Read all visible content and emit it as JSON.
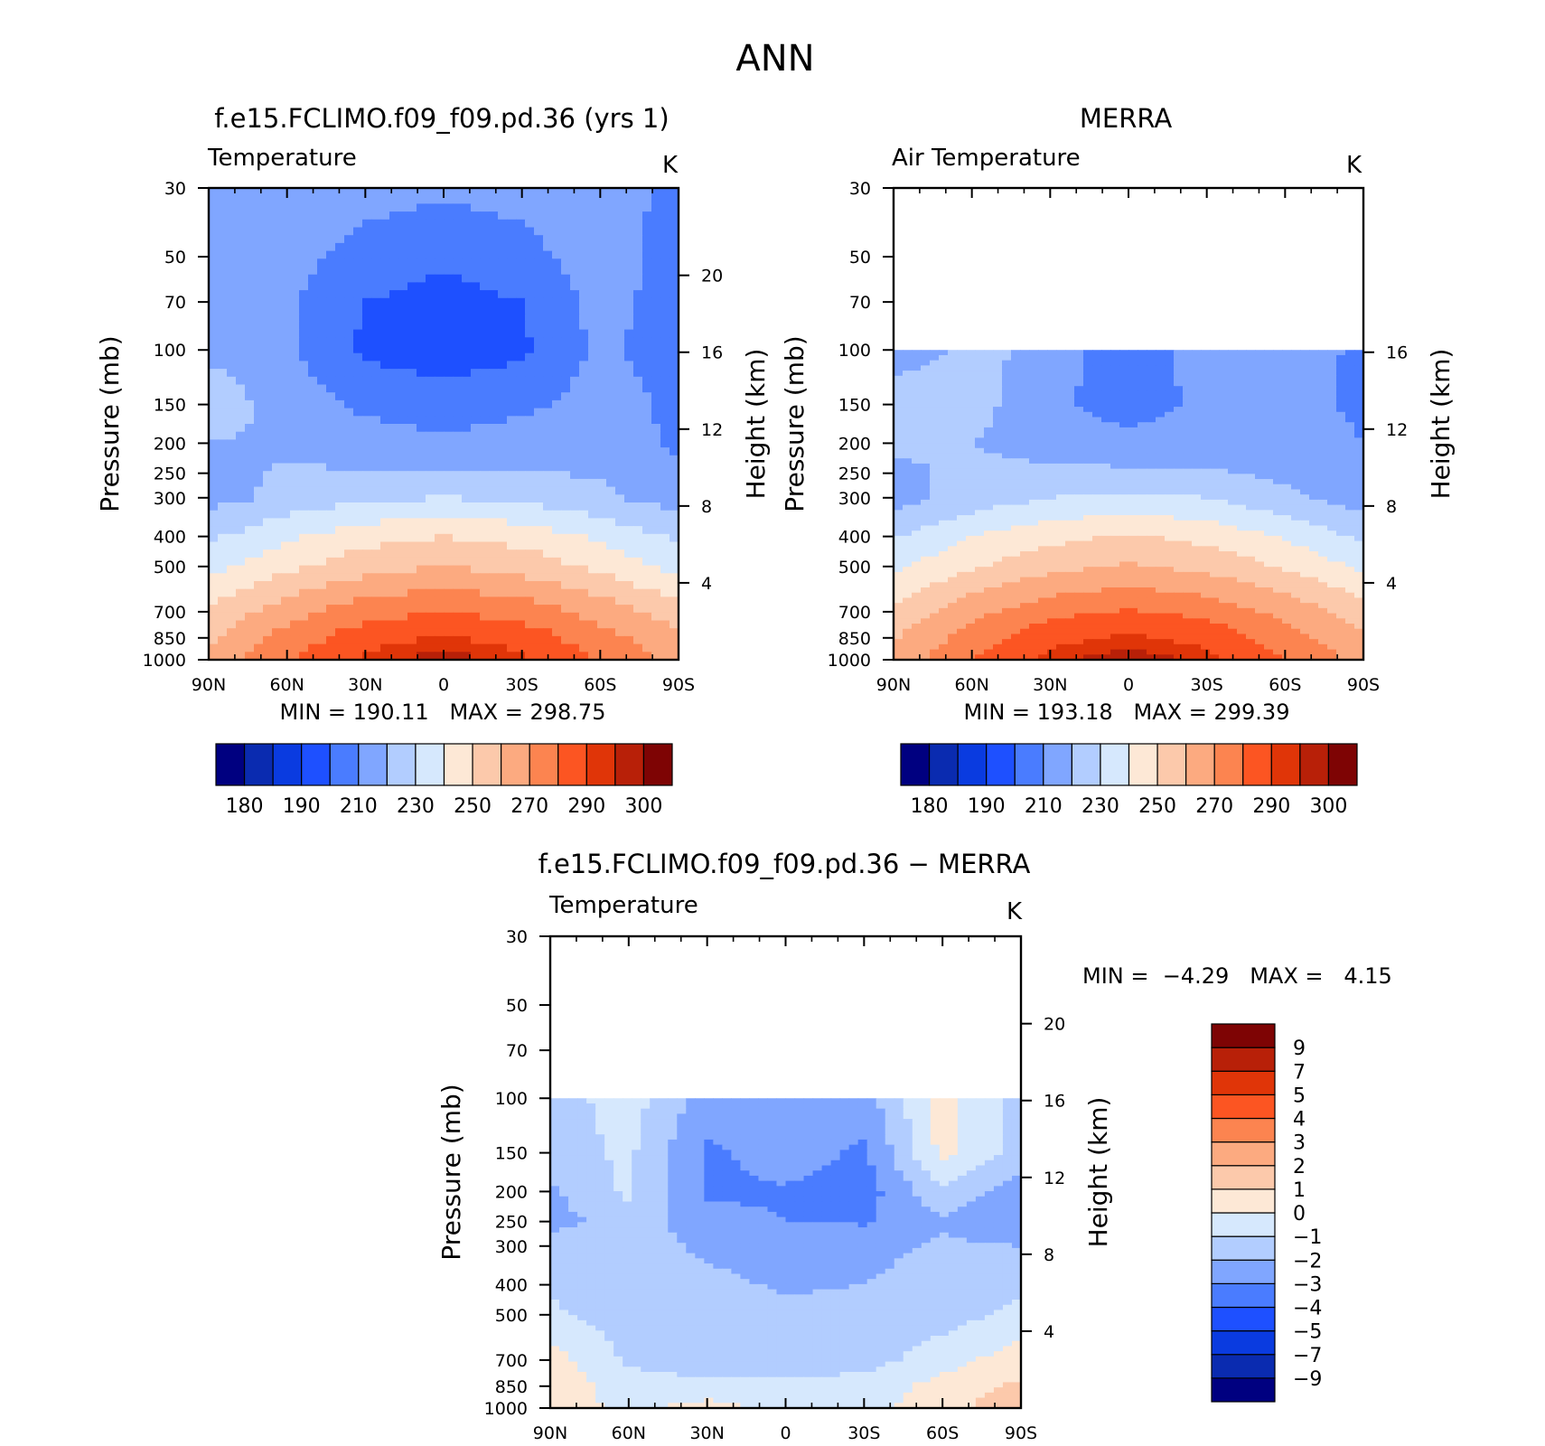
{
  "main_title": "ANN",
  "panels": [
    {
      "title": "f.e15.FCLIMO.f09_f09.pd.36 (yrs  1)",
      "subtitle": "Temperature",
      "units": "K",
      "stats": {
        "min_label": "MIN =",
        "min": "190.11",
        "max_label": "MAX =",
        "max": "298.75"
      }
    },
    {
      "title": "MERRA",
      "subtitle": "Air Temperature",
      "units": "K",
      "stats": {
        "min_label": "MIN =",
        "min": "193.18",
        "max_label": "MAX =",
        "max": "299.39"
      }
    },
    {
      "title": "f.e15.FCLIMO.f09_f09.pd.36 − MERRA",
      "subtitle": "Temperature",
      "units": "K",
      "stats": {
        "min_label": "MIN =",
        "min": "−4.29",
        "max_label": "MAX =",
        "max": "4.15"
      }
    }
  ],
  "axes": {
    "y_left_label": "Pressure (mb)",
    "y_right_label": "Height (km)"
  },
  "colorbars": {
    "absolute": {
      "colors": [
        "#000080",
        "#0a2bb0",
        "#0a3be0",
        "#1e50ff",
        "#4a7cff",
        "#80a6ff",
        "#b2cdff",
        "#d6e8fd",
        "#fde8d6",
        "#fcc9ab",
        "#fcaa80",
        "#fc8450",
        "#fc5522",
        "#e03508",
        "#b82008",
        "#7e0404"
      ],
      "labels": [
        "180",
        "190",
        "210",
        "230",
        "250",
        "270",
        "290",
        "300"
      ]
    },
    "difference": {
      "colors": [
        "#000080",
        "#0a2bb0",
        "#0a3be0",
        "#1e50ff",
        "#4a7cff",
        "#80a6ff",
        "#b2cdff",
        "#d6e8fd",
        "#fde8d6",
        "#fcc9ab",
        "#fcaa80",
        "#fc8450",
        "#fc5522",
        "#e03508",
        "#b82008",
        "#7e0404"
      ],
      "labels": [
        "−9",
        "−7",
        "−5",
        "−4",
        "−3",
        "−2",
        "−1",
        "0",
        "1",
        "2",
        "3",
        "4",
        "5",
        "7",
        "9"
      ]
    }
  },
  "chart_data": [
    {
      "type": "heatmap",
      "title": "f.e15.FCLIMO.f09_f09.pd.36 (yrs  1)",
      "subtitle": "Temperature",
      "units": "K",
      "xlabel": "",
      "ylabel": "Pressure (mb)",
      "ylabel_right": "Height (km)",
      "x_ticks": [
        "90N",
        "60N",
        "30N",
        "0",
        "30S",
        "60S",
        "90S"
      ],
      "y_ticks": [
        30,
        50,
        70,
        100,
        150,
        200,
        250,
        300,
        400,
        500,
        700,
        850,
        1000
      ],
      "y_right_ticks": [
        4,
        8,
        12,
        16,
        20
      ],
      "y_scale": "log",
      "ylim": [
        1000,
        30
      ],
      "xlim": [
        90,
        -90
      ],
      "min": 190.11,
      "max": 298.75,
      "levels": [
        180,
        185,
        190,
        200,
        210,
        220,
        230,
        240,
        250,
        260,
        270,
        280,
        290,
        295,
        300
      ],
      "field": {
        "lat": [
          90,
          60,
          30,
          0,
          -30,
          -60,
          -90
        ],
        "pressure": [
          30,
          50,
          70,
          100,
          150,
          200,
          250,
          300,
          400,
          500,
          700,
          850,
          1000
        ],
        "values": [
          [
            218,
            218,
            214,
            212,
            214,
            218,
            205
          ],
          [
            218,
            214,
            206,
            202,
            206,
            216,
            205
          ],
          [
            218,
            212,
            200,
            196,
            200,
            214,
            205
          ],
          [
            218,
            212,
            198,
            194,
            198,
            212,
            205
          ],
          [
            226,
            216,
            208,
            205,
            208,
            214,
            208
          ],
          [
            220,
            218,
            214,
            212,
            214,
            216,
            208
          ],
          [
            217,
            221,
            221,
            221,
            221,
            219,
            212
          ],
          [
            216,
            223,
            228,
            230,
            228,
            222,
            215
          ],
          [
            228,
            238,
            246,
            250,
            246,
            238,
            228
          ],
          [
            236,
            248,
            256,
            260,
            256,
            248,
            236
          ],
          [
            252,
            266,
            276,
            280,
            276,
            266,
            255
          ],
          [
            258,
            274,
            286,
            291,
            286,
            274,
            262
          ],
          [
            262,
            279,
            292,
            298,
            292,
            279,
            266
          ]
        ]
      }
    },
    {
      "type": "heatmap",
      "title": "MERRA",
      "subtitle": "Air Temperature",
      "units": "K",
      "xlabel": "",
      "ylabel": "Pressure (mb)",
      "ylabel_right": "Height (km)",
      "x_ticks": [
        "90N",
        "60N",
        "30N",
        "0",
        "30S",
        "60S",
        "90S"
      ],
      "y_ticks": [
        30,
        50,
        70,
        100,
        150,
        200,
        250,
        300,
        400,
        500,
        700,
        850,
        1000
      ],
      "y_right_ticks": [
        4,
        8,
        12,
        16
      ],
      "y_scale": "log",
      "ylim": [
        1000,
        30
      ],
      "xlim": [
        90,
        -90
      ],
      "data_top_pressure": 100,
      "min": 193.18,
      "max": 299.39,
      "levels": [
        180,
        185,
        190,
        200,
        210,
        220,
        230,
        240,
        250,
        260,
        270,
        280,
        290,
        295,
        300
      ],
      "field": {
        "lat": [
          90,
          60,
          30,
          0,
          -30,
          -60,
          -90
        ],
        "pressure": [
          100,
          150,
          200,
          250,
          300,
          400,
          500,
          700,
          850,
          1000
        ],
        "values": [
          [
            215,
            222,
            218,
            199,
            218,
            215,
            208
          ],
          [
            226,
            224,
            212,
            205,
            212,
            214,
            208
          ],
          [
            222,
            220,
            216,
            213,
            216,
            216,
            210
          ],
          [
            218,
            222,
            222,
            222,
            221,
            218,
            212
          ],
          [
            216,
            224,
            230,
            232,
            230,
            222,
            215
          ],
          [
            229,
            240,
            247,
            251,
            247,
            239,
            228
          ],
          [
            238,
            249,
            257,
            261,
            257,
            249,
            238
          ],
          [
            253,
            267,
            277,
            281,
            277,
            267,
            255
          ],
          [
            259,
            275,
            287,
            292,
            287,
            275,
            262
          ],
          [
            263,
            280,
            293,
            299,
            293,
            280,
            266
          ]
        ]
      }
    },
    {
      "type": "heatmap",
      "title": "f.e15.FCLIMO.f09_f09.pd.36 − MERRA",
      "subtitle": "Temperature",
      "units": "K",
      "xlabel": "",
      "ylabel": "Pressure (mb)",
      "ylabel_right": "Height (km)",
      "x_ticks": [
        "90N",
        "60N",
        "30N",
        "0",
        "30S",
        "60S",
        "90S"
      ],
      "y_ticks": [
        30,
        50,
        70,
        100,
        150,
        200,
        250,
        300,
        400,
        500,
        700,
        850,
        1000
      ],
      "y_right_ticks": [
        4,
        8,
        12,
        16,
        20
      ],
      "y_scale": "log",
      "ylim": [
        1000,
        30
      ],
      "xlim": [
        90,
        -90
      ],
      "data_top_pressure": 100,
      "min": -4.29,
      "max": 4.15,
      "levels": [
        -9,
        -7,
        -5,
        -4,
        -3,
        -2,
        -1,
        0,
        1,
        2,
        3,
        4,
        5,
        7,
        9
      ],
      "field": {
        "lat": [
          90,
          60,
          30,
          0,
          -30,
          -60,
          -90
        ],
        "pressure": [
          100,
          150,
          200,
          250,
          300,
          400,
          500,
          700,
          850,
          1000
        ],
        "values": [
          [
            -1.5,
            -0.5,
            -2.5,
            -2.5,
            -2.5,
            0.5,
            -1.5
          ],
          [
            -1.5,
            -0.8,
            -3.2,
            -2.5,
            -3.2,
            0.3,
            -1.5
          ],
          [
            -2.2,
            -0.8,
            -3.2,
            -3.1,
            -3.5,
            -1.2,
            -2.5
          ],
          [
            -2.4,
            -1.5,
            -2.6,
            -3.0,
            -3.1,
            -2.2,
            -3.0
          ],
          [
            -1.5,
            -1.5,
            -2.2,
            -2.3,
            -2.4,
            -1.8,
            -2.0
          ],
          [
            -1.2,
            -1.5,
            -1.8,
            -2.1,
            -2.0,
            -1.5,
            -1.2
          ],
          [
            -0.8,
            -1.5,
            -1.7,
            -1.8,
            -1.7,
            -1.4,
            -0.8
          ],
          [
            0.5,
            -1.2,
            -1.5,
            -1.5,
            -1.4,
            -0.5,
            0.6
          ],
          [
            0.6,
            -0.5,
            -0.8,
            -0.8,
            -0.6,
            0.4,
            1.2
          ],
          [
            0.8,
            -0.4,
            0.5,
            -0.5,
            -0.3,
            0.5,
            1.8
          ]
        ]
      }
    }
  ]
}
